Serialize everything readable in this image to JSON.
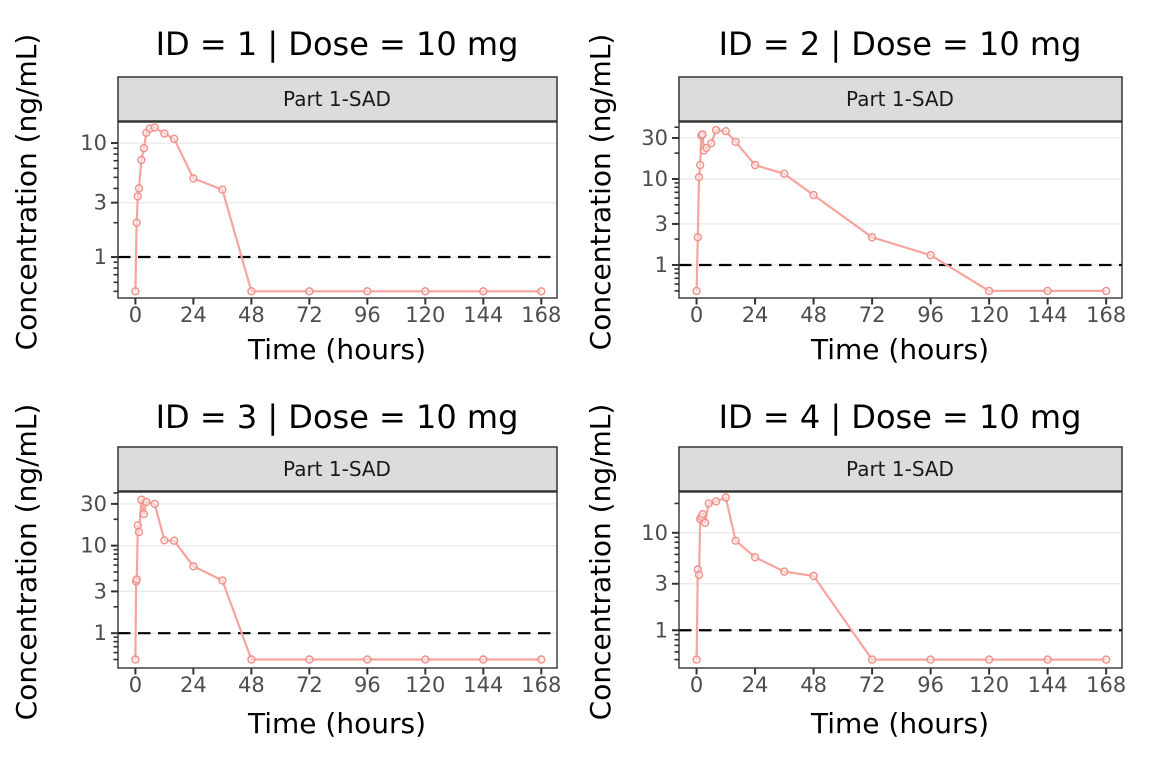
{
  "figure": {
    "xlabel": "Time (hours)",
    "ylabel": "Concentration (ng/mL)",
    "strip_label": "Part 1-SAD"
  },
  "style": {
    "line_color": "#F7A49E",
    "marker_stroke": "#F0908A",
    "marker_fill": "#FDEEEC",
    "strip_bg": "#DCDCDC",
    "strip_border": "#333333",
    "panel_border": "#333333",
    "grid_color": "#E8E8E8",
    "tick_color": "#333333",
    "tick_label_color": "#4D4D4D",
    "text_color": "#000000",
    "lloq_color": "#000000",
    "panel_bg": "#FFFFFF"
  },
  "y_minor_ticks_base": [
    0.5,
    0.6,
    0.7,
    0.8,
    0.9,
    2,
    4,
    5,
    6,
    7,
    8,
    9,
    20,
    40,
    50
  ],
  "chart_data": [
    {
      "type": "line",
      "title": "ID = 1 | Dose = 10 mg",
      "strip_label": "Part 1-SAD",
      "xlabel": "Time (hours)",
      "ylabel": "Concentration (ng/mL)",
      "x_ticks": [
        0,
        24,
        48,
        72,
        96,
        120,
        144,
        168
      ],
      "xlim": [
        -7.2,
        174.5
      ],
      "y_ticks": [
        1,
        3,
        10
      ],
      "ylim": [
        0.437,
        15.3
      ],
      "lloq": 1,
      "x": [
        0,
        0.5,
        1,
        1.5,
        2.5,
        3.5,
        4.5,
        6,
        8,
        12,
        16,
        24,
        36,
        48,
        72,
        96,
        120,
        144,
        168
      ],
      "y": [
        0.5,
        2.0,
        3.4,
        4.0,
        7.1,
        9.0,
        12.3,
        13.4,
        13.7,
        12.1,
        10.9,
        4.9,
        3.9,
        0.5,
        0.5,
        0.5,
        0.5,
        0.5,
        0.5
      ]
    },
    {
      "type": "line",
      "title": "ID = 2 | Dose = 10 mg",
      "strip_label": "Part 1-SAD",
      "xlabel": "Time (hours)",
      "ylabel": "Concentration (ng/mL)",
      "x_ticks": [
        0,
        24,
        48,
        72,
        96,
        120,
        144,
        168
      ],
      "xlim": [
        -7.2,
        174.5
      ],
      "y_ticks": [
        1,
        3,
        10,
        30
      ],
      "ylim": [
        0.413,
        46
      ],
      "lloq": 1,
      "x": [
        0,
        0.5,
        1,
        1.5,
        2,
        2.5,
        3,
        4,
        6,
        8,
        12,
        16,
        24,
        36,
        48,
        72,
        96,
        120,
        144,
        168
      ],
      "y": [
        0.5,
        2.1,
        10.5,
        14.5,
        32,
        33,
        21.5,
        23,
        26,
        37,
        36,
        27,
        14.5,
        11.5,
        6.5,
        2.1,
        1.3,
        0.5,
        0.5,
        0.5
      ]
    },
    {
      "type": "line",
      "title": "ID = 3 | Dose = 10 mg",
      "strip_label": "Part 1-SAD",
      "xlabel": "Time (hours)",
      "ylabel": "Concentration (ng/mL)",
      "x_ticks": [
        0,
        24,
        48,
        72,
        96,
        120,
        144,
        168
      ],
      "xlim": [
        -7.2,
        174.5
      ],
      "y_ticks": [
        1,
        3,
        10,
        30
      ],
      "ylim": [
        0.4,
        41
      ],
      "lloq": 1,
      "x": [
        0,
        0.3,
        0.6,
        1,
        1.5,
        2.5,
        3.5,
        4.5,
        8,
        12,
        16,
        24,
        36,
        48,
        72,
        96,
        120,
        144,
        168
      ],
      "y": [
        0.5,
        3.9,
        4.1,
        17,
        14.3,
        33.5,
        23,
        31.5,
        30,
        11.5,
        11.4,
        5.8,
        4.0,
        0.5,
        0.5,
        0.5,
        0.5,
        0.5,
        0.5
      ]
    },
    {
      "type": "line",
      "title": "ID = 4 | Dose = 10 mg",
      "strip_label": "Part 1-SAD",
      "xlabel": "Time (hours)",
      "ylabel": "Concentration (ng/mL)",
      "x_ticks": [
        0,
        24,
        48,
        72,
        96,
        120,
        144,
        168
      ],
      "xlim": [
        -7.2,
        174.5
      ],
      "y_ticks": [
        1,
        3,
        10
      ],
      "ylim": [
        0.41,
        26.2
      ],
      "lloq": 1,
      "x": [
        0,
        0.5,
        1,
        1.5,
        2,
        2.5,
        3.5,
        5,
        8,
        12,
        16,
        24,
        36,
        48,
        72,
        96,
        120,
        144,
        168
      ],
      "y": [
        0.5,
        4.2,
        3.7,
        13.8,
        14.6,
        15.5,
        12.7,
        20,
        21,
        23,
        8.3,
        5.6,
        4.0,
        3.6,
        0.5,
        0.5,
        0.5,
        0.5,
        0.5
      ]
    }
  ]
}
